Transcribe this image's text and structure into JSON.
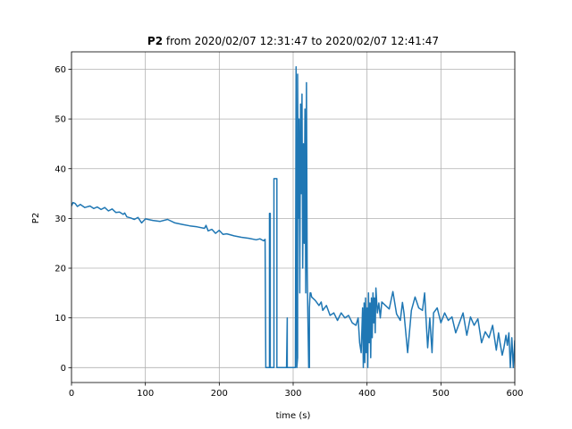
{
  "chart_data": {
    "type": "line",
    "title_bold": "P2",
    "title_rest": " from 2020/02/07 12:31:47 to 2020/02/07 12:41:47",
    "xlabel": "time (s)",
    "ylabel": "P2",
    "xlim": [
      0,
      600
    ],
    "ylim": [
      -3,
      63.5
    ],
    "xticks": [
      0,
      100,
      200,
      300,
      400,
      500,
      600
    ],
    "yticks": [
      0,
      10,
      20,
      30,
      40,
      50,
      60
    ],
    "grid": true,
    "legend": "none",
    "series": [
      {
        "color": "#1f77b4",
        "x": [
          0,
          2,
          5,
          8,
          12,
          18,
          25,
          30,
          35,
          40,
          45,
          50,
          55,
          60,
          65,
          70,
          72,
          75,
          80,
          85,
          90,
          95,
          100,
          110,
          120,
          130,
          140,
          150,
          160,
          170,
          180,
          182,
          185,
          190,
          195,
          200,
          205,
          210,
          220,
          230,
          240,
          250,
          255,
          260,
          262,
          263,
          263,
          268,
          268,
          269,
          269,
          273,
          273,
          274,
          274,
          278,
          278,
          279,
          279,
          290,
          291,
          292,
          292,
          293,
          295,
          303,
          304,
          305,
          306,
          306,
          307,
          308,
          309,
          310,
          311,
          312,
          313,
          314,
          315,
          316,
          317,
          318,
          319,
          320,
          321,
          322,
          322,
          323,
          324,
          325,
          330,
          335,
          338,
          340,
          345,
          350,
          355,
          360,
          365,
          370,
          375,
          380,
          385,
          388,
          390,
          392,
          394,
          395,
          396,
          397,
          398,
          399,
          400,
          401,
          402,
          403,
          404,
          405,
          406,
          407,
          408,
          409,
          410,
          411,
          412,
          414,
          416,
          418,
          420,
          425,
          430,
          435,
          440,
          445,
          448,
          450,
          455,
          460,
          465,
          470,
          475,
          478,
          480,
          482,
          485,
          488,
          490,
          495,
          500,
          505,
          510,
          515,
          520,
          525,
          530,
          535,
          540,
          545,
          550,
          555,
          560,
          565,
          570,
          575,
          578,
          580,
          583,
          585,
          588,
          590,
          592,
          594,
          596,
          598,
          600
        ],
        "y": [
          32.5,
          33.2,
          33,
          32.4,
          32.8,
          32.2,
          32.5,
          32,
          32.3,
          31.8,
          32.2,
          31.5,
          31.9,
          31.2,
          31.3,
          30.8,
          31.1,
          30.3,
          30.1,
          29.8,
          30.2,
          29.1,
          29.9,
          29.6,
          29.4,
          29.8,
          29.1,
          28.8,
          28.5,
          28.3,
          28,
          28.6,
          27.5,
          27.8,
          27,
          27.6,
          26.8,
          26.9,
          26.5,
          26.2,
          26,
          25.7,
          25.9,
          25.5,
          25.8,
          0,
          0,
          0,
          31,
          31,
          0,
          0,
          0,
          0,
          38,
          38,
          0,
          0,
          0,
          0,
          0,
          10,
          0,
          0,
          0,
          0,
          60.5,
          0,
          2,
          59,
          30,
          50,
          15,
          53,
          35,
          55,
          20,
          45,
          25,
          52,
          15,
          57.3,
          20,
          10,
          0,
          0,
          12,
          15,
          15,
          14.2,
          13.5,
          12.5,
          13.2,
          11.5,
          12.5,
          10.5,
          11,
          9.5,
          11,
          10,
          10.5,
          9,
          8.5,
          10,
          5,
          3,
          12,
          0,
          13,
          1,
          14,
          3,
          12,
          0,
          15,
          5,
          13,
          2,
          14,
          6,
          15,
          9,
          14,
          7,
          16,
          11,
          13,
          10,
          13.2,
          12.5,
          11.8,
          15.3,
          10.8,
          9.5,
          13.1,
          11,
          3,
          11.5,
          14.2,
          12,
          11.5,
          15,
          9.5,
          4,
          10,
          3,
          11,
          12,
          9,
          11,
          9.5,
          10.2,
          7,
          9,
          11,
          6.5,
          10.2,
          8.5,
          9.8,
          5,
          7.2,
          6,
          8.5,
          3.5,
          7,
          5,
          2.5,
          3.8,
          6.5,
          4.5,
          7,
          0,
          6,
          0,
          5.5
        ]
      }
    ]
  }
}
